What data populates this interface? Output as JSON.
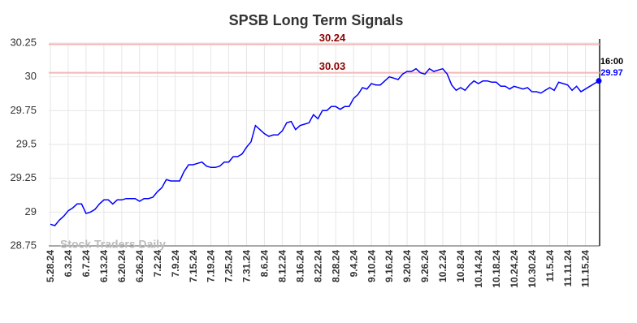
{
  "chart_data": {
    "type": "line",
    "title": "SPSB Long Term Signals",
    "categories": [
      "5.28.24",
      null,
      null,
      null,
      "6.3.24",
      null,
      null,
      null,
      "6.7.24",
      null,
      null,
      null,
      "6.13.24",
      null,
      null,
      null,
      "6.20.24",
      null,
      null,
      null,
      "6.26.24",
      null,
      null,
      null,
      "7.2.24",
      null,
      null,
      null,
      "7.9.24",
      null,
      null,
      null,
      "7.15.24",
      null,
      null,
      null,
      "7.19.24",
      null,
      null,
      null,
      "7.25.24",
      null,
      null,
      null,
      "7.31.24",
      null,
      null,
      null,
      "8.6.24",
      null,
      null,
      null,
      "8.12.24",
      null,
      null,
      null,
      "8.16.24",
      null,
      null,
      null,
      "8.22.24",
      null,
      null,
      null,
      "8.28.24",
      null,
      null,
      null,
      "9.4.24",
      null,
      null,
      null,
      "9.10.24",
      null,
      null,
      null,
      "9.16.24",
      null,
      null,
      null,
      "9.20.24",
      null,
      null,
      null,
      "9.26.24",
      null,
      null,
      null,
      "10.2.24",
      null,
      null,
      null,
      "10.8.24",
      null,
      null,
      null,
      "10.14.24",
      null,
      null,
      null,
      "10.18.24",
      null,
      null,
      null,
      "10.24.24",
      null,
      null,
      null,
      "10.30.24",
      null,
      null,
      null,
      "11.5.24",
      null,
      null,
      null,
      "11.11.24",
      null,
      null,
      null,
      "11.15.24",
      null,
      null,
      null
    ],
    "values": [
      28.91,
      28.9,
      28.94,
      28.97,
      29.01,
      29.03,
      29.06,
      29.06,
      28.99,
      29.0,
      29.02,
      29.06,
      29.09,
      29.09,
      29.06,
      29.09,
      29.09,
      29.1,
      29.1,
      29.1,
      29.08,
      29.1,
      29.1,
      29.11,
      29.15,
      29.18,
      29.24,
      29.23,
      29.23,
      29.23,
      29.3,
      29.35,
      29.35,
      29.36,
      29.37,
      29.34,
      29.33,
      29.33,
      29.34,
      29.37,
      29.37,
      29.41,
      29.41,
      29.43,
      29.48,
      29.52,
      29.64,
      29.61,
      29.58,
      29.56,
      29.57,
      29.57,
      29.6,
      29.66,
      29.67,
      29.61,
      29.64,
      29.65,
      29.66,
      29.72,
      29.69,
      29.75,
      29.75,
      29.78,
      29.78,
      29.76,
      29.78,
      29.78,
      29.84,
      29.87,
      29.92,
      29.91,
      29.95,
      29.94,
      29.94,
      29.97,
      30.0,
      29.99,
      29.98,
      30.02,
      30.04,
      30.04,
      30.06,
      30.03,
      30.02,
      30.06,
      30.04,
      30.05,
      30.06,
      30.02,
      29.94,
      29.9,
      29.92,
      29.9,
      29.94,
      29.97,
      29.95,
      29.97,
      29.97,
      29.96,
      29.96,
      29.93,
      29.93,
      29.91,
      29.93,
      29.92,
      29.91,
      29.92,
      29.89,
      29.89,
      29.88,
      29.9,
      29.92,
      29.9,
      29.96,
      29.95,
      29.94,
      29.9,
      29.93,
      29.89,
      29.91,
      29.93,
      29.95,
      29.97
    ],
    "color": "#0000ff",
    "hlines": [
      30.24,
      30.03
    ],
    "hline_color": "#f4b8b8",
    "hline_label_color": "#8b0000",
    "last_time": "16:00",
    "watermark": "Stock Traders Daily",
    "ylim": [
      28.75,
      30.25
    ],
    "yticks": [
      28.75,
      29,
      29.25,
      29.5,
      29.75,
      30,
      30.25
    ],
    "grid": true
  }
}
